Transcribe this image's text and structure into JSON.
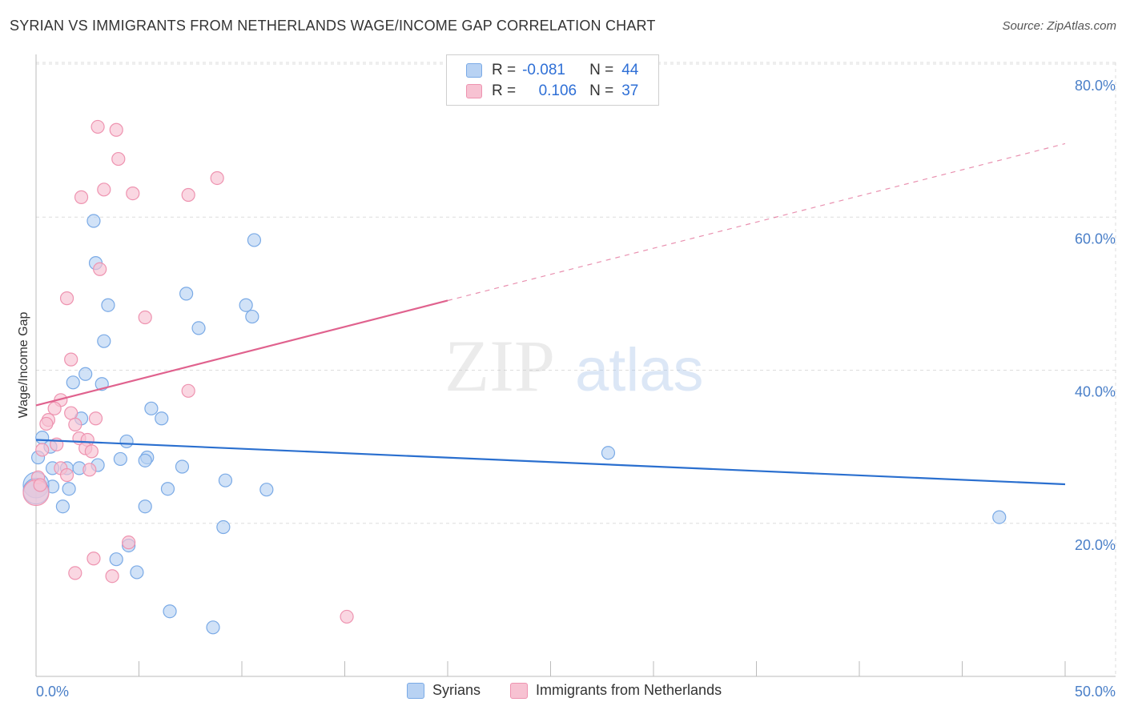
{
  "title": "SYRIAN VS IMMIGRANTS FROM NETHERLANDS WAGE/INCOME GAP CORRELATION CHART",
  "source": "Source: ZipAtlas.com",
  "watermark": {
    "zip": "ZIP",
    "atlas": "atlas"
  },
  "legend_top": {
    "rows": [
      {
        "r_label": "R =",
        "r_value": "-0.081",
        "n_label": "N =",
        "n_value": "44"
      },
      {
        "r_label": "R =",
        "r_value": "0.106",
        "n_label": "N =",
        "n_value": "37"
      }
    ]
  },
  "colors": {
    "blue_fill": "#b8d2f3",
    "blue_stroke": "#7aaae6",
    "blue_line": "#2a6fcf",
    "pink_fill": "#f7c2d2",
    "pink_stroke": "#ee93b0",
    "pink_line": "#e0628e",
    "tick_text": "#4a7fc8",
    "grid": "#dddddd"
  },
  "chart_data": {
    "type": "scatter",
    "ylabel": "Wage/Income Gap",
    "xlim": [
      0,
      50
    ],
    "ylim": [
      0,
      80
    ],
    "x_tick_labels": [
      "0.0%",
      "50.0%"
    ],
    "y_ticks": [
      20,
      40,
      60,
      80
    ],
    "y_tick_labels": [
      "20.0%",
      "40.0%",
      "60.0%",
      "80.0%"
    ],
    "grid": true,
    "series": [
      {
        "name": "Syrians",
        "color": "blue",
        "points": [
          [
            2.8,
            59.5
          ],
          [
            2.9,
            54.0
          ],
          [
            10.6,
            57.0
          ],
          [
            3.5,
            48.5
          ],
          [
            7.3,
            50.0
          ],
          [
            10.2,
            48.5
          ],
          [
            10.5,
            47.0
          ],
          [
            7.9,
            45.5
          ],
          [
            3.3,
            43.8
          ],
          [
            2.4,
            39.5
          ],
          [
            1.8,
            38.4
          ],
          [
            3.2,
            38.2
          ],
          [
            5.6,
            35.0
          ],
          [
            6.1,
            33.7
          ],
          [
            2.2,
            33.7
          ],
          [
            0.3,
            31.2
          ],
          [
            4.4,
            30.7
          ],
          [
            0.7,
            30.0
          ],
          [
            0.1,
            28.6
          ],
          [
            5.4,
            28.6
          ],
          [
            4.1,
            28.4
          ],
          [
            5.3,
            28.2
          ],
          [
            3.0,
            27.6
          ],
          [
            0.8,
            27.2
          ],
          [
            1.5,
            27.2
          ],
          [
            7.1,
            27.4
          ],
          [
            2.1,
            27.2
          ],
          [
            9.2,
            25.6
          ],
          [
            0.8,
            24.8
          ],
          [
            1.6,
            24.5
          ],
          [
            6.4,
            24.5
          ],
          [
            11.2,
            24.4
          ],
          [
            0.0,
            25.0
          ],
          [
            1.3,
            22.2
          ],
          [
            5.3,
            22.2
          ],
          [
            9.1,
            19.5
          ],
          [
            27.8,
            29.2
          ],
          [
            46.8,
            20.8
          ],
          [
            3.9,
            15.3
          ],
          [
            4.5,
            17.1
          ],
          [
            4.9,
            13.6
          ],
          [
            6.5,
            8.5
          ],
          [
            8.6,
            6.4
          ],
          [
            0.0,
            24.2
          ]
        ]
      },
      {
        "name": "Immigrants from Netherlands",
        "color": "pink",
        "points": [
          [
            3.0,
            71.8
          ],
          [
            3.9,
            71.4
          ],
          [
            4.0,
            67.6
          ],
          [
            2.2,
            62.6
          ],
          [
            3.3,
            63.6
          ],
          [
            4.7,
            63.1
          ],
          [
            7.4,
            62.9
          ],
          [
            8.8,
            65.1
          ],
          [
            3.1,
            53.2
          ],
          [
            1.5,
            49.4
          ],
          [
            5.3,
            46.9
          ],
          [
            1.7,
            41.4
          ],
          [
            7.4,
            37.3
          ],
          [
            1.2,
            36.1
          ],
          [
            1.7,
            34.4
          ],
          [
            0.9,
            35.0
          ],
          [
            0.6,
            33.5
          ],
          [
            2.9,
            33.7
          ],
          [
            1.9,
            32.9
          ],
          [
            0.5,
            33.0
          ],
          [
            2.1,
            31.1
          ],
          [
            2.5,
            30.9
          ],
          [
            1.0,
            30.3
          ],
          [
            2.4,
            29.8
          ],
          [
            2.7,
            29.4
          ],
          [
            0.3,
            29.6
          ],
          [
            1.2,
            27.2
          ],
          [
            2.6,
            27.0
          ],
          [
            1.5,
            26.3
          ],
          [
            0.1,
            26.0
          ],
          [
            4.5,
            17.5
          ],
          [
            2.8,
            15.4
          ],
          [
            1.9,
            13.5
          ],
          [
            3.7,
            13.1
          ],
          [
            0.0,
            24.0
          ],
          [
            15.1,
            7.8
          ],
          [
            0.2,
            25.0
          ]
        ]
      }
    ],
    "trend_lines": [
      {
        "series": "Syrians",
        "x": [
          0,
          50
        ],
        "y": [
          30.9,
          25.1
        ],
        "style": "solid"
      },
      {
        "series": "Immigrants from Netherlands",
        "x_solid": [
          0,
          20
        ],
        "y_solid": [
          35.4,
          49.1
        ],
        "x_dashed": [
          20,
          50
        ],
        "y_dashed": [
          49.1,
          69.6
        ]
      }
    ]
  }
}
